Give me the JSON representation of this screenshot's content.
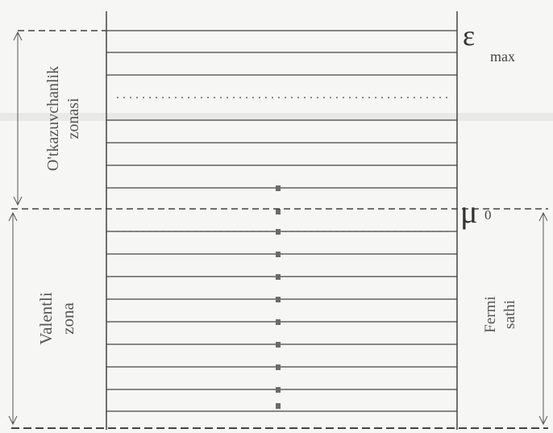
{
  "diagram": {
    "labels": {
      "conduction_zone": [
        "O'tkazuvchanlik",
        "zonasi"
      ],
      "valence_zone": [
        "Valentli",
        "zona"
      ],
      "fermi_level": [
        "Fermi",
        "sathi"
      ],
      "epsilon_symbol": "ε",
      "epsilon_subscript": "max",
      "mu_symbol": "μ",
      "mu_subscript": "0"
    },
    "colors": {
      "line": "#444444",
      "dot": "#6b6b6b",
      "background": "#f6f6f4"
    }
  }
}
